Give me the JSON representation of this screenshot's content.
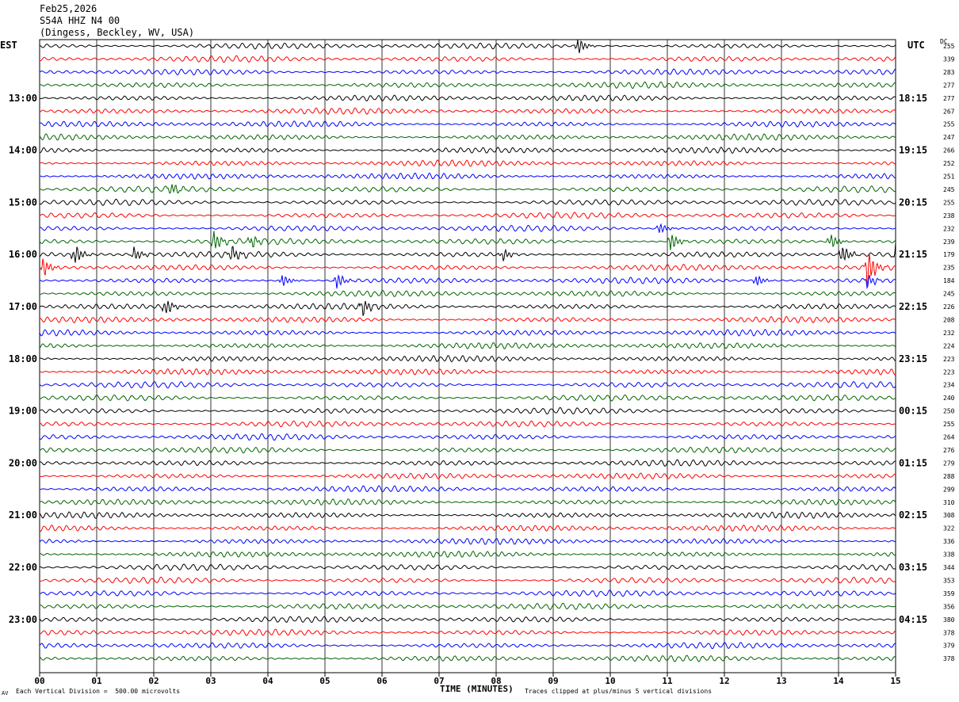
{
  "header": {
    "date": "Feb25,2026",
    "station": "S54A HHZ N4 00",
    "location": "(Dingess, Beckley, WV, USA)"
  },
  "labels": {
    "left_zone": "EST",
    "right_zone": "UTC",
    "dc": "DC",
    "x_axis_title": "TIME (MINUTES)",
    "scale_note": "Each Vertical Division =  500.00 microvolts",
    "clip_note": "Traces clipped at plus/minus 5 vertical divisions",
    "logo": "AV"
  },
  "colors": {
    "cycle": [
      "#000000",
      "#ff0000",
      "#0000ff",
      "#006400"
    ],
    "grid": "#000000"
  },
  "chart_data": {
    "type": "line",
    "title": "S54A HHZ N4 00",
    "xlabel": "TIME (MINUTES)",
    "xlim": [
      0,
      15
    ],
    "x_ticks": [
      "00",
      "01",
      "02",
      "03",
      "04",
      "05",
      "06",
      "07",
      "08",
      "09",
      "10",
      "11",
      "12",
      "13",
      "14",
      "15"
    ],
    "rows_per_hour": 4,
    "row_count": 48,
    "left_hour_labels": [
      "13:00",
      "14:00",
      "15:00",
      "16:00",
      "17:00",
      "18:00",
      "19:00",
      "20:00",
      "21:00",
      "22:00",
      "23:00"
    ],
    "right_hour_labels": [
      "18:15",
      "19:15",
      "20:15",
      "21:15",
      "22:15",
      "23:15",
      "00:15",
      "01:15",
      "02:15",
      "03:15",
      "04:15"
    ],
    "dc_offsets": [
      255,
      339,
      283,
      277,
      277,
      267,
      255,
      247,
      266,
      252,
      251,
      245,
      255,
      238,
      232,
      239,
      179,
      235,
      184,
      245,
      226,
      208,
      232,
      224,
      223,
      223,
      234,
      240,
      250,
      255,
      264,
      276,
      279,
      288,
      299,
      310,
      308,
      322,
      336,
      338,
      344,
      353,
      359,
      356,
      380,
      378,
      379,
      378
    ],
    "events": [
      {
        "row": 0,
        "minute": 9.42,
        "amp": 1.3
      },
      {
        "row": 11,
        "minute": 2.3,
        "amp": 0.9
      },
      {
        "row": 14,
        "minute": 10.85,
        "amp": 0.9
      },
      {
        "row": 15,
        "minute": 3.05,
        "amp": 1.5
      },
      {
        "row": 15,
        "minute": 3.7,
        "amp": 0.9
      },
      {
        "row": 15,
        "minute": 11.05,
        "amp": 1.4
      },
      {
        "row": 15,
        "minute": 13.85,
        "amp": 1.2
      },
      {
        "row": 16,
        "minute": 0.6,
        "amp": 1.6
      },
      {
        "row": 16,
        "minute": 3.35,
        "amp": 1.4
      },
      {
        "row": 16,
        "minute": 1.65,
        "amp": 1.0
      },
      {
        "row": 16,
        "minute": 8.1,
        "amp": 1.0
      },
      {
        "row": 16,
        "minute": 14.05,
        "amp": 1.5
      },
      {
        "row": 16,
        "minute": 15.0,
        "amp": 1.5
      },
      {
        "row": 17,
        "minute": 0.05,
        "amp": 1.4
      },
      {
        "row": 17,
        "minute": 14.5,
        "amp": 2.8
      },
      {
        "row": 18,
        "minute": 5.2,
        "amp": 1.2
      },
      {
        "row": 18,
        "minute": 4.25,
        "amp": 0.9
      },
      {
        "row": 18,
        "minute": 12.55,
        "amp": 0.9
      },
      {
        "row": 18,
        "minute": 14.5,
        "amp": 1.0
      },
      {
        "row": 20,
        "minute": 2.2,
        "amp": 1.3
      },
      {
        "row": 20,
        "minute": 5.65,
        "amp": 1.3
      }
    ]
  }
}
